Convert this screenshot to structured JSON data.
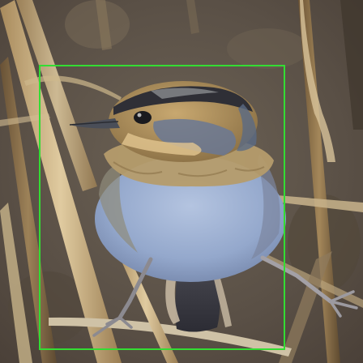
{
  "scene": {
    "subject": "bird",
    "colors": {
      "background": "#5d5348",
      "box": "#33dd33",
      "reed_light": "#d8c39a",
      "reed_dark": "#8a6e4a",
      "bird_belly": "#9aaed0",
      "bird_head_stripe": "#3a3a40",
      "bird_cheek": "#6a7894",
      "bird_ochre": "#b89a62",
      "bird_tail": "#3a3a44"
    }
  }
}
